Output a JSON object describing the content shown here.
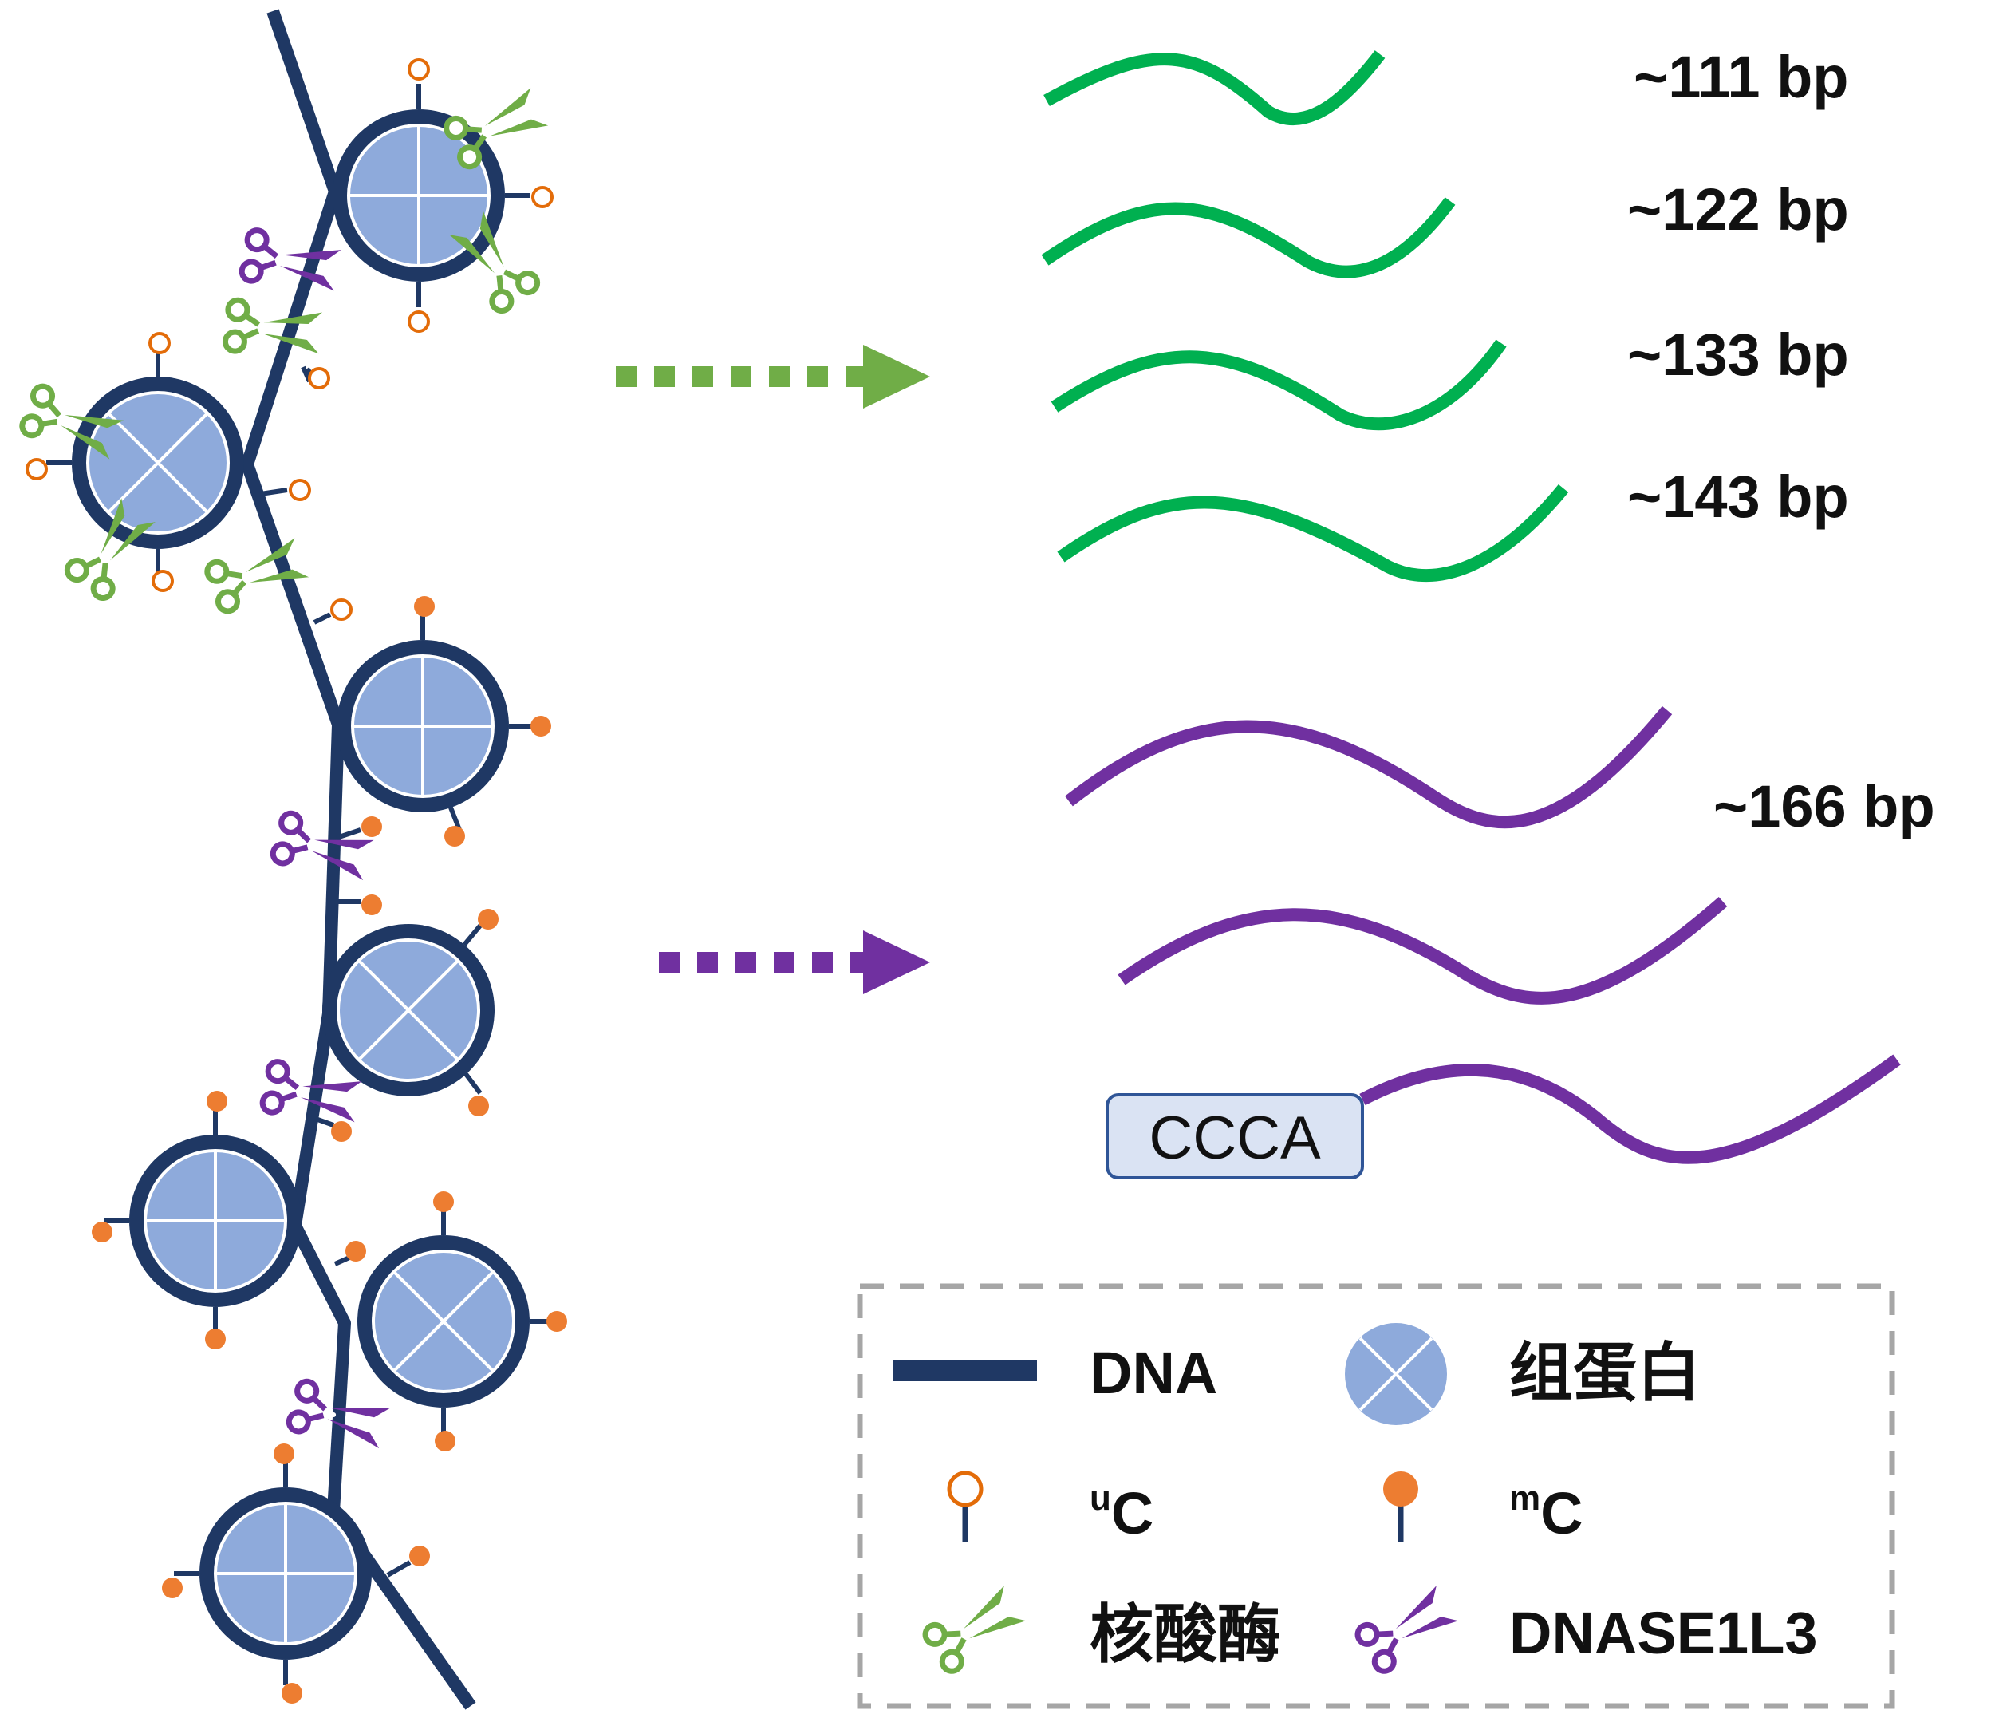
{
  "colors": {
    "dna": "#1f3864",
    "histone_fill": "#8eaadb",
    "nuclease": "#70ad47",
    "dnase1l3": "#7030a0",
    "fragment_green": "#00b050",
    "fragment_purple": "#7030a0",
    "unmethylated": "#e36c09",
    "methylated": "#ed7d31",
    "motif_box": "#dae3f3",
    "legend_border": "#a6a6a6"
  },
  "fragments": {
    "short": [
      "~111 bp",
      "~122 bp",
      "~133 bp",
      "~143 bp"
    ],
    "long": "~166 bp",
    "end_motif": "CCCA"
  },
  "legend": {
    "dna": "DNA",
    "histone": "组蛋白",
    "uc_prefix": "u",
    "uc_base": "C",
    "mc_prefix": "m",
    "mc_base": "C",
    "nuclease": "核酸酶",
    "dnase1l3": "DNASE1L3"
  },
  "icons": {
    "histone": "histone-octamer-icon",
    "unmethylated": "open-lollipop-icon",
    "methylated": "filled-lollipop-icon",
    "scissors": "scissors-icon"
  }
}
